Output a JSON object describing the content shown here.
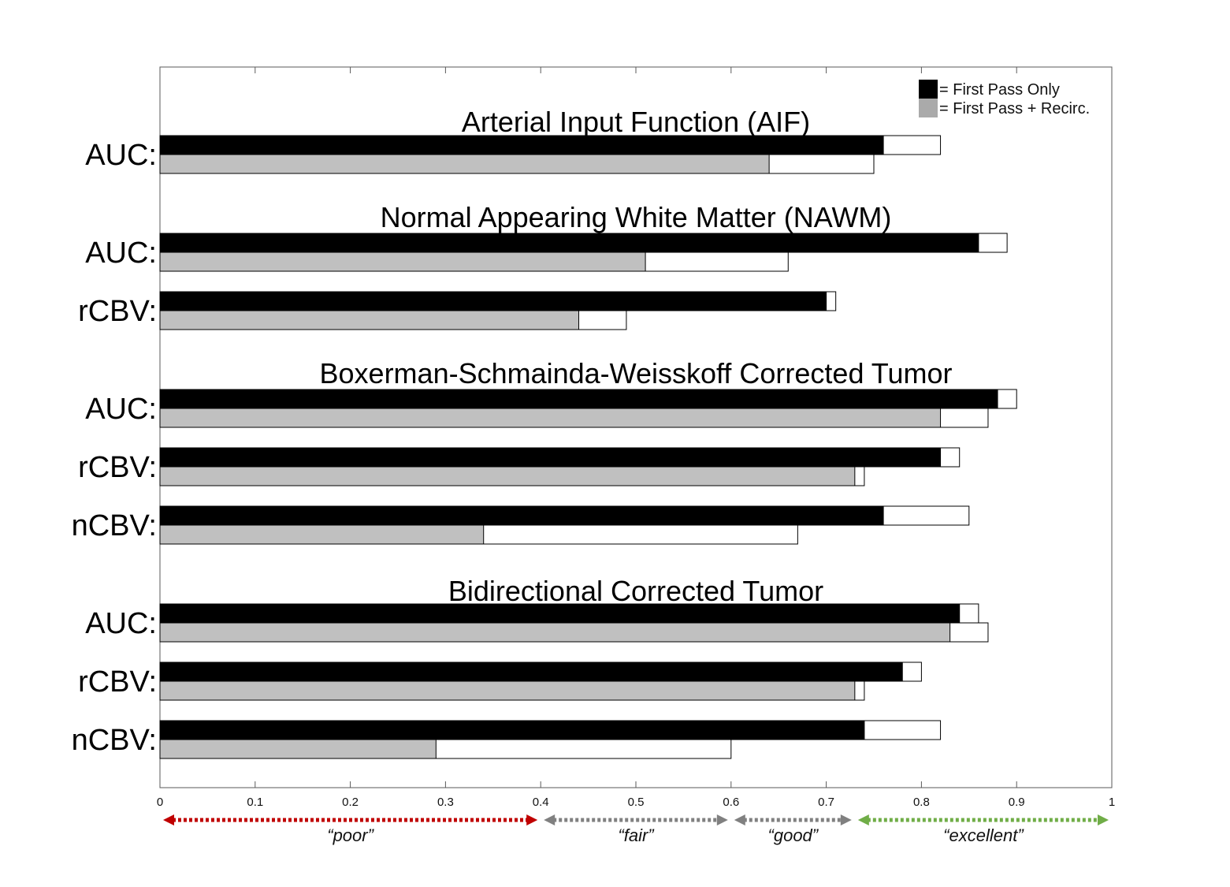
{
  "chart_data": {
    "type": "bar",
    "orientation": "horizontal",
    "xlim": [
      0,
      1
    ],
    "xticks": [
      "0",
      "0.1",
      "0.2",
      "0.3",
      "0.4",
      "0.5",
      "0.6",
      "0.7",
      "0.8",
      "0.9",
      "1"
    ],
    "grid": false,
    "legend": {
      "placement": "top-right",
      "entries": [
        {
          "label": "= First Pass Only",
          "color": "#000000"
        },
        {
          "label": "= First Pass + Recirc.",
          "color": "#aaaaaa"
        }
      ]
    },
    "series_colors": {
      "first_pass": "#000000",
      "first_pass_recirc": "#c0c0c0",
      "extension": "#ffffff"
    },
    "groups": [
      {
        "title": "Arterial Input Function (AIF)",
        "rows": [
          {
            "label": "AUC:",
            "first_pass": [
              0.76,
              0.82
            ],
            "first_pass_recirc": [
              0.64,
              0.75
            ]
          }
        ]
      },
      {
        "title": "Normal Appearing White Matter (NAWM)",
        "rows": [
          {
            "label": "AUC:",
            "first_pass": [
              0.86,
              0.89
            ],
            "first_pass_recirc": [
              0.51,
              0.66
            ]
          },
          {
            "label": "rCBV:",
            "first_pass": [
              0.7,
              0.71
            ],
            "first_pass_recirc": [
              0.44,
              0.49
            ]
          }
        ]
      },
      {
        "title": "Boxerman-Schmainda-Weisskoff Corrected Tumor",
        "rows": [
          {
            "label": "AUC:",
            "first_pass": [
              0.88,
              0.9
            ],
            "first_pass_recirc": [
              0.82,
              0.87
            ]
          },
          {
            "label": "rCBV:",
            "first_pass": [
              0.82,
              0.84
            ],
            "first_pass_recirc": [
              0.73,
              0.74
            ]
          },
          {
            "label": "nCBV:",
            "first_pass": [
              0.76,
              0.85
            ],
            "first_pass_recirc": [
              0.34,
              0.67
            ]
          }
        ]
      },
      {
        "title": "Bidirectional Corrected Tumor",
        "rows": [
          {
            "label": "AUC:",
            "first_pass": [
              0.84,
              0.86
            ],
            "first_pass_recirc": [
              0.83,
              0.87
            ]
          },
          {
            "label": "rCBV:",
            "first_pass": [
              0.78,
              0.8
            ],
            "first_pass_recirc": [
              0.73,
              0.74
            ]
          },
          {
            "label": "nCBV:",
            "first_pass": [
              0.74,
              0.82
            ],
            "first_pass_recirc": [
              0.29,
              0.6
            ]
          }
        ]
      }
    ],
    "qualitative_ranges": [
      {
        "label": "“poor”",
        "from": 0.0,
        "to": 0.4,
        "color": "#c00000"
      },
      {
        "label": "“fair”",
        "from": 0.4,
        "to": 0.6,
        "color": "#808080"
      },
      {
        "label": "“good”",
        "from": 0.6,
        "to": 0.73,
        "color": "#808080"
      },
      {
        "label": "“excellent”",
        "from": 0.73,
        "to": 1.0,
        "color": "#70ad47"
      }
    ]
  }
}
